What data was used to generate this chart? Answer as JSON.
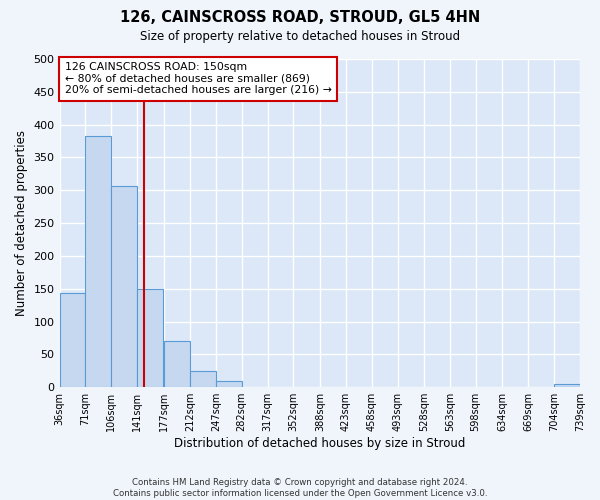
{
  "title": "126, CAINSCROSS ROAD, STROUD, GL5 4HN",
  "subtitle": "Size of property relative to detached houses in Stroud",
  "xlabel": "Distribution of detached houses by size in Stroud",
  "ylabel": "Number of detached properties",
  "bar_color": "#c5d8f0",
  "bar_edge_color": "#5b9bd5",
  "background_color": "#dce8f8",
  "fig_background_color": "#f0f5fc",
  "grid_color": "#ffffff",
  "vline_x": 150,
  "vline_color": "#cc0000",
  "annotation_line1": "126 CAINSCROSS ROAD: 150sqm",
  "annotation_line2": "← 80% of detached houses are smaller (869)",
  "annotation_line3": "20% of semi-detached houses are larger (216) →",
  "bin_edges": [
    36,
    71,
    106,
    141,
    177,
    212,
    247,
    282,
    317,
    352,
    388,
    423,
    458,
    493,
    528,
    563,
    598,
    634,
    669,
    704,
    739
  ],
  "bar_heights": [
    143,
    383,
    307,
    150,
    70,
    25,
    10,
    0,
    0,
    0,
    0,
    0,
    0,
    0,
    0,
    0,
    0,
    0,
    0,
    5
  ],
  "ylim": [
    0,
    500
  ],
  "yticks": [
    0,
    50,
    100,
    150,
    200,
    250,
    300,
    350,
    400,
    450,
    500
  ],
  "footer_line1": "Contains HM Land Registry data © Crown copyright and database right 2024.",
  "footer_line2": "Contains public sector information licensed under the Open Government Licence v3.0."
}
